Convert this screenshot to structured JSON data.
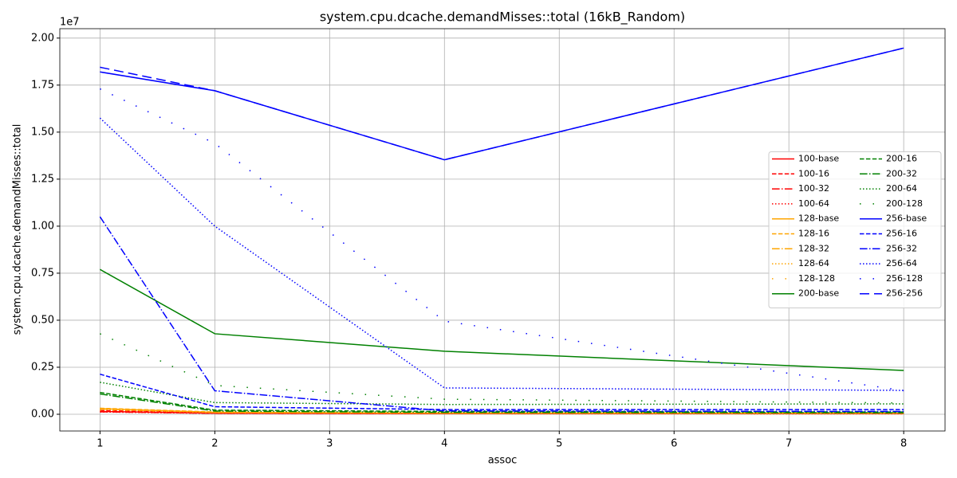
{
  "chart_data": {
    "type": "line",
    "title": "system.cpu.dcache.demandMisses::total (16kB_Random)",
    "x_label": "assoc",
    "y_label": "system.cpu.dcache.demandMisses::total",
    "y_offset_label": "1e7",
    "x": [
      1,
      2,
      4,
      8
    ],
    "xlim": [
      0.65,
      8.36
    ],
    "ylim": [
      -0.089,
      2.05
    ],
    "xticks": [
      1,
      2,
      3,
      4,
      5,
      6,
      7,
      8
    ],
    "yticks": [
      {
        "value": 0,
        "label": "0.00"
      },
      {
        "value": 0.25,
        "label": "0.25"
      },
      {
        "value": 0.5,
        "label": "0.50"
      },
      {
        "value": 0.75,
        "label": "0.75"
      },
      {
        "value": 1,
        "label": "1.00"
      },
      {
        "value": 1.25,
        "label": "1.25"
      },
      {
        "value": 1.5,
        "label": "1.50"
      },
      {
        "value": 1.75,
        "label": "1.75"
      },
      {
        "value": 2,
        "label": "2.00"
      }
    ],
    "grid": true,
    "legend_position": "center right",
    "legend_columns": 2,
    "series": [
      {
        "name": "100-base",
        "color": "red",
        "linestyle": "solid",
        "values": [
          0.015,
          0.006,
          0.004,
          0.003
        ]
      },
      {
        "name": "100-16",
        "color": "red",
        "linestyle": "dashed",
        "values": [
          0.02,
          0.008,
          0.005,
          0.004
        ]
      },
      {
        "name": "100-32",
        "color": "red",
        "linestyle": "dashdot",
        "values": [
          0.013,
          0.005,
          0.003,
          0.003
        ]
      },
      {
        "name": "100-64",
        "color": "red",
        "linestyle": "dotted",
        "values": [
          0.012,
          0.005,
          0.003,
          0.002
        ]
      },
      {
        "name": "128-base",
        "color": "orange",
        "linestyle": "solid",
        "values": [
          0.03,
          0.01,
          0.006,
          0.005
        ]
      },
      {
        "name": "128-16",
        "color": "orange",
        "linestyle": "dashed",
        "values": [
          0.032,
          0.012,
          0.007,
          0.006
        ]
      },
      {
        "name": "128-32",
        "color": "orange",
        "linestyle": "dashdot",
        "values": [
          0.028,
          0.01,
          0.006,
          0.005
        ]
      },
      {
        "name": "128-64",
        "color": "orange",
        "linestyle": "dotted",
        "values": [
          0.025,
          0.009,
          0.005,
          0.004
        ]
      },
      {
        "name": "128-128",
        "color": "orange",
        "linestyle": "loosely-dotted",
        "values": [
          0.022,
          0.008,
          0.005,
          0.004
        ]
      },
      {
        "name": "200-base",
        "color": "green",
        "linestyle": "solid",
        "values": [
          0.77,
          0.428,
          0.335,
          0.233
        ]
      },
      {
        "name": "200-16",
        "color": "green",
        "linestyle": "dashed",
        "values": [
          0.116,
          0.022,
          0.015,
          0.012
        ]
      },
      {
        "name": "200-32",
        "color": "green",
        "linestyle": "dashdot",
        "values": [
          0.108,
          0.017,
          0.01,
          0.008
        ]
      },
      {
        "name": "200-64",
        "color": "green",
        "linestyle": "dotted",
        "values": [
          0.17,
          0.062,
          0.052,
          0.055
        ]
      },
      {
        "name": "200-128",
        "color": "green",
        "linestyle": "loosely-dotted",
        "values": [
          0.428,
          0.153,
          0.08,
          0.06
        ]
      },
      {
        "name": "256-base",
        "color": "blue",
        "linestyle": "solid",
        "values": [
          1.82,
          1.72,
          1.353,
          1.947
        ]
      },
      {
        "name": "256-16",
        "color": "blue",
        "linestyle": "dashed",
        "values": [
          0.213,
          0.04,
          0.025,
          0.025
        ]
      },
      {
        "name": "256-32",
        "color": "blue",
        "linestyle": "dashdot",
        "values": [
          1.05,
          0.125,
          0.018,
          0.015
        ]
      },
      {
        "name": "256-64",
        "color": "blue",
        "linestyle": "dotted",
        "values": [
          1.575,
          1.0,
          0.14,
          0.127
        ]
      },
      {
        "name": "256-128",
        "color": "blue",
        "linestyle": "loosely-dotted",
        "values": [
          1.73,
          1.44,
          0.495,
          0.125
        ]
      },
      {
        "name": "256-256",
        "color": "blue",
        "linestyle": "loosely-dashed",
        "values": [
          1.845,
          1.72,
          1.353,
          1.947
        ]
      }
    ]
  }
}
